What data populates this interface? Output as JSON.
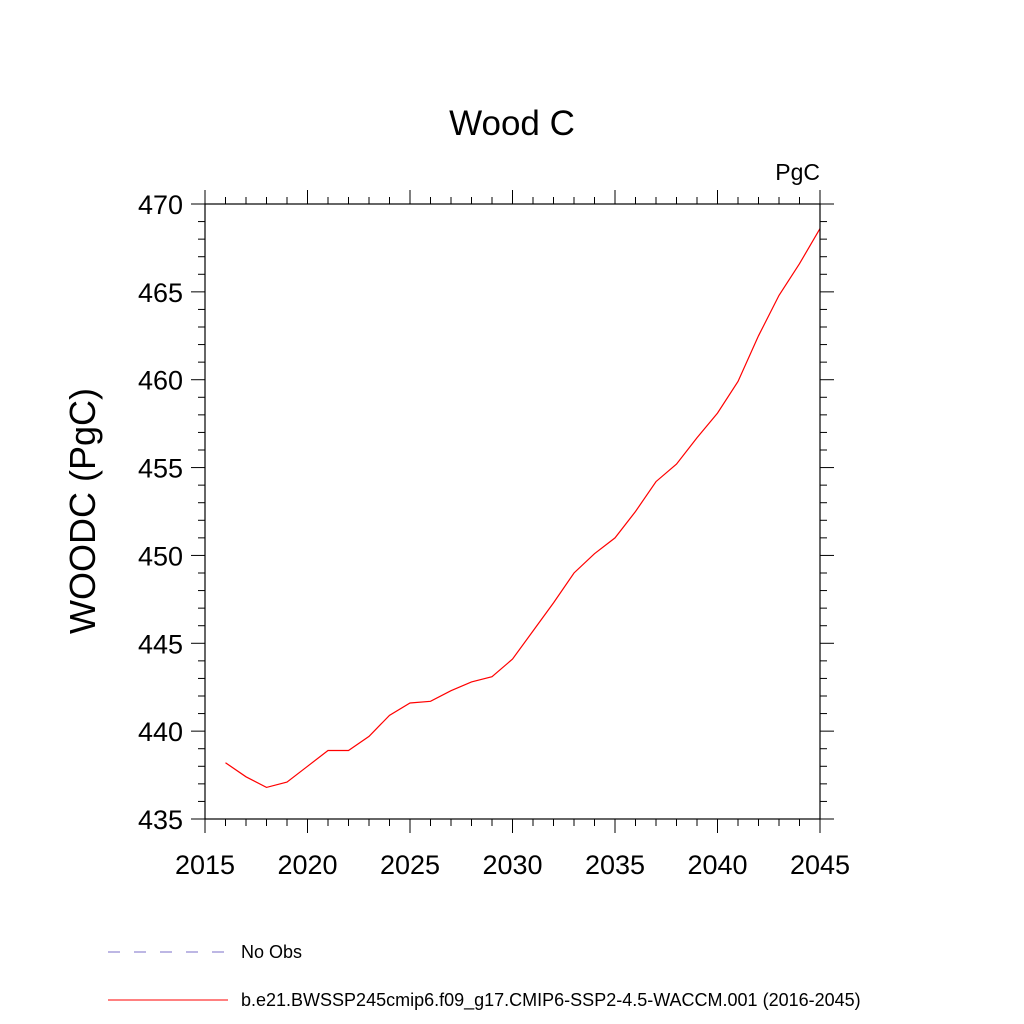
{
  "chart_data": {
    "type": "line",
    "title": "Wood C",
    "units_label": "PgC",
    "ylabel": "WOODC  (PgC)",
    "xlabel": "",
    "xlim": [
      2015,
      2045
    ],
    "ylim": [
      435,
      470
    ],
    "x_ticks": [
      2015,
      2020,
      2025,
      2030,
      2035,
      2040,
      2045
    ],
    "y_ticks": [
      435,
      440,
      445,
      450,
      455,
      460,
      465,
      470
    ],
    "grid": false,
    "series": [
      {
        "name": "b.e21.BWSSP245cmip6.f09_g17.CMIP6-SSP2-4.5-WACCM.001 (2016-2045)",
        "color": "#ff0000",
        "style": "solid",
        "x": [
          2016,
          2017,
          2018,
          2019,
          2020,
          2021,
          2022,
          2023,
          2024,
          2025,
          2026,
          2027,
          2028,
          2029,
          2030,
          2031,
          2032,
          2033,
          2034,
          2035,
          2036,
          2037,
          2038,
          2039,
          2040,
          2041,
          2042,
          2043,
          2044,
          2045
        ],
        "y": [
          438.2,
          437.4,
          436.8,
          437.1,
          438.0,
          438.9,
          438.9,
          439.7,
          440.9,
          441.6,
          441.7,
          442.3,
          442.8,
          443.1,
          444.1,
          445.7,
          447.3,
          449.0,
          450.1,
          451.0,
          452.5,
          454.2,
          455.2,
          456.7,
          458.1,
          459.9,
          462.5,
          464.8,
          466.6,
          468.6
        ]
      }
    ],
    "legend": [
      {
        "label": "No Obs",
        "color": "#7b6fc8",
        "style": "dashed"
      },
      {
        "label": "b.e21.BWSSP245cmip6.f09_g17.CMIP6-SSP2-4.5-WACCM.001 (2016-2045)",
        "color": "#ff0000",
        "style": "solid"
      }
    ],
    "legend_position": "bottom-left"
  }
}
